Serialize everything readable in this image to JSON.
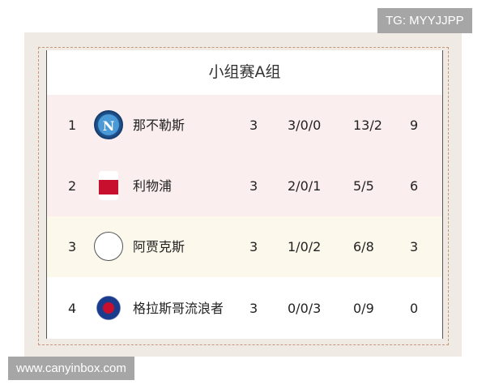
{
  "title": "小组赛A组",
  "rows": [
    {
      "rank": "1",
      "team": "那不勒斯",
      "logo": "napoli-crest-icon",
      "logo_text": "N",
      "played": "3",
      "wdl": "3/0/0",
      "goals": "13/2",
      "points": "9",
      "bg": "#fbeeee"
    },
    {
      "rank": "2",
      "team": "利物浦",
      "logo": "liverpool-crest-icon",
      "logo_text": "",
      "played": "3",
      "wdl": "2/0/1",
      "goals": "5/5",
      "points": "6",
      "bg": "#fbeeee"
    },
    {
      "rank": "3",
      "team": "阿贾克斯",
      "logo": "ajax-crest-icon",
      "logo_text": "",
      "played": "3",
      "wdl": "1/0/2",
      "goals": "6/8",
      "points": "3",
      "bg": "#fcf8ec"
    },
    {
      "rank": "4",
      "team": "格拉斯哥流浪者",
      "logo": "rangers-crest-icon",
      "logo_text": "",
      "played": "3",
      "wdl": "0/0/3",
      "goals": "0/9",
      "points": "0",
      "bg": "#ffffff"
    }
  ],
  "watermarks": {
    "top": "TG: MYYJJPP",
    "bottom": "www.canyinbox.com"
  }
}
